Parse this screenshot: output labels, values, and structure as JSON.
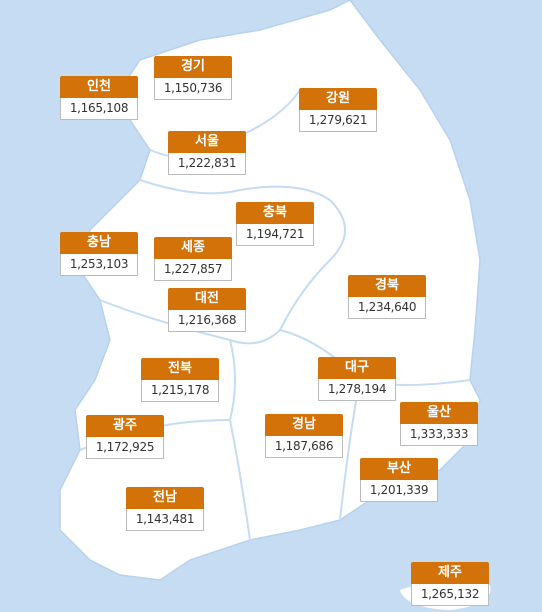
{
  "regions": [
    {
      "name": "인천",
      "value": "1,165,108"
    },
    {
      "name": "경기",
      "value": "1,150,736"
    },
    {
      "name": "강원",
      "value": "1,279,621"
    },
    {
      "name": "서울",
      "value": "1,222,831"
    },
    {
      "name": "충북",
      "value": "1,194,721"
    },
    {
      "name": "충남",
      "value": "1,253,103"
    },
    {
      "name": "세종",
      "value": "1,227,857"
    },
    {
      "name": "대전",
      "value": "1,216,368"
    },
    {
      "name": "경북",
      "value": "1,234,640"
    },
    {
      "name": "전북",
      "value": "1,215,178"
    },
    {
      "name": "대구",
      "value": "1,278,194"
    },
    {
      "name": "광주",
      "value": "1,172,925"
    },
    {
      "name": "경남",
      "value": "1,187,686"
    },
    {
      "name": "울산",
      "value": "1,333,333"
    },
    {
      "name": "부산",
      "value": "1,201,339"
    },
    {
      "name": "전남",
      "value": "1,143,481"
    },
    {
      "name": "제주",
      "value": "1,265,132"
    }
  ]
}
